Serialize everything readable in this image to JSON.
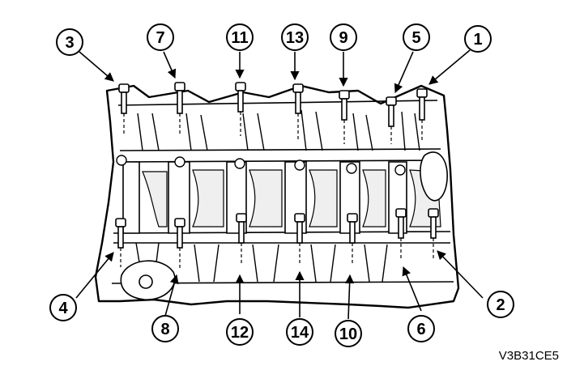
{
  "figure_code": "V3B31CE5",
  "callouts": [
    {
      "num": "3"
    },
    {
      "num": "7"
    },
    {
      "num": "11"
    },
    {
      "num": "13"
    },
    {
      "num": "9"
    },
    {
      "num": "5"
    },
    {
      "num": "1"
    },
    {
      "num": "4"
    },
    {
      "num": "8"
    },
    {
      "num": "12"
    },
    {
      "num": "14"
    },
    {
      "num": "10"
    },
    {
      "num": "6"
    },
    {
      "num": "2"
    }
  ],
  "colors": {
    "line": "#000000",
    "fill": "#ffffff",
    "shade": "#d9d9d9"
  }
}
